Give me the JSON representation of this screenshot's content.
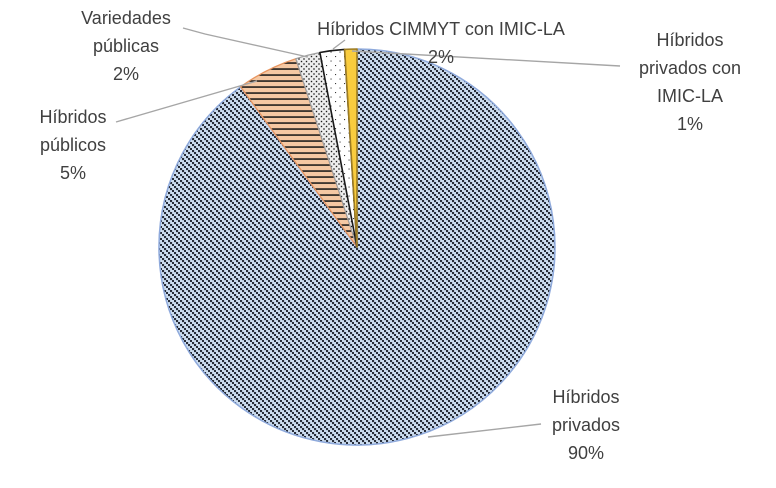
{
  "chart_data": {
    "type": "pie",
    "title": "",
    "legend": "none",
    "data_labels": "outside-with-leader-lines",
    "start_angle_deg": 0,
    "direction": "clockwise",
    "categories": [
      "Híbridos privados",
      "Híbridos públicos",
      "Variedades públicas",
      "Híbridos CIMMYT con IMIC-LA",
      "Híbridos privados con IMIC-LA"
    ],
    "values": [
      90,
      5,
      2,
      2,
      1
    ],
    "slices": [
      {
        "label": "Híbridos privados",
        "pct_label": "90%",
        "value": 90,
        "fill": "#cbdcef",
        "pattern": "diagonal-squares",
        "pattern_color": "#272c38",
        "border": "#8faadc",
        "border_width": 1.5
      },
      {
        "label": "Híbridos públicos",
        "pct_label": "5%",
        "value": 5,
        "fill": "#f5c8a3",
        "pattern": "horizontal-lines",
        "pattern_color": "#141414",
        "border": "#e8955f",
        "border_width": 1.3
      },
      {
        "label": "Variedades públicas",
        "pct_label": "2%",
        "value": 2,
        "fill": "#efefef",
        "pattern": "dense-dots",
        "pattern_color": "#1c1c1c",
        "border": "#a0a0a0",
        "border_width": 1.2
      },
      {
        "label": "Híbridos CIMMYT con IMIC-LA",
        "pct_label": "2%",
        "value": 2,
        "fill": "#ffffff",
        "pattern": "sparse-dots",
        "pattern_color": "#3a3a3a",
        "border": "#1a1a1a",
        "border_width": 1.6
      },
      {
        "label": "Híbridos privados con IMIC-LA",
        "pct_label": "1%",
        "value": 1,
        "fill": "#f9cc3e",
        "pattern": "solid",
        "pattern_color": "",
        "border": "#9c7b22",
        "border_width": 1.6
      }
    ]
  },
  "labels": {
    "variedades": {
      "lines": [
        "Variedades",
        "públicas",
        "2%"
      ]
    },
    "publicos": {
      "lines": [
        "Híbridos",
        "públicos",
        "5%"
      ]
    },
    "cimmyt": {
      "lines": [
        "Híbridos CIMMYT con IMIC-LA",
        "2%"
      ]
    },
    "privados_imic": {
      "lines": [
        "Híbridos",
        "privados con",
        "IMIC-LA",
        "1%"
      ]
    },
    "privados": {
      "lines": [
        "Híbridos",
        "privados",
        "90%"
      ]
    }
  },
  "colors": {
    "label_text": "#404040",
    "leader_line": "#a6a6a6",
    "background": "#ffffff"
  }
}
